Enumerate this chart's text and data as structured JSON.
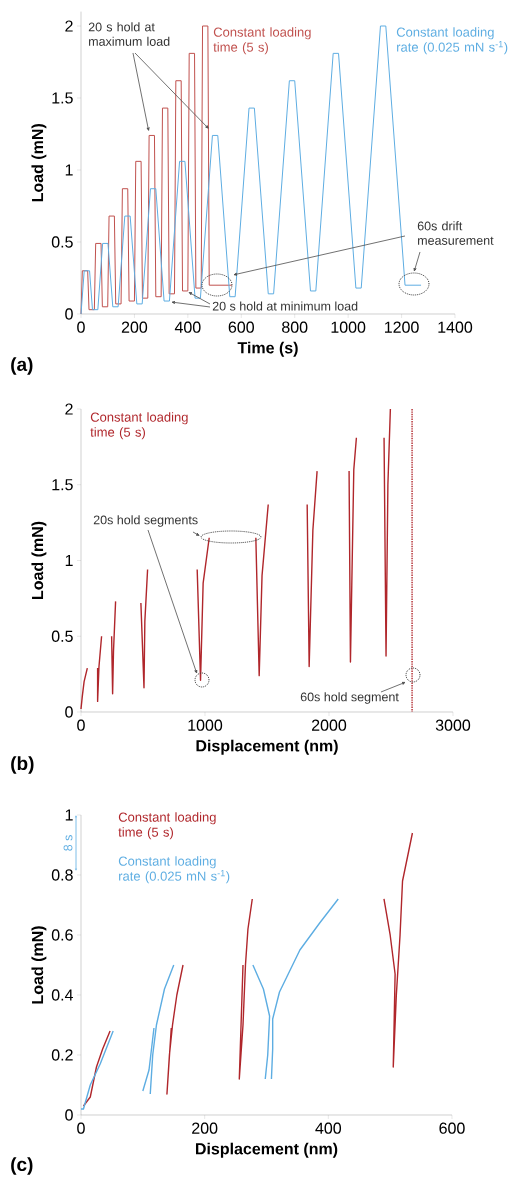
{
  "chart_data": [
    {
      "type": "line",
      "title": "(a)",
      "xlabel": "Time (s)",
      "ylabel": "Load (mN)",
      "xlim": [
        0,
        1400
      ],
      "ylim": [
        0,
        2.1
      ],
      "xticks": [
        0,
        200,
        400,
        600,
        800,
        1000,
        1200,
        1400
      ],
      "yticks": [
        0,
        0.5,
        1,
        1.5,
        2
      ],
      "series": [
        {
          "name": "Constant loading time (5 s)",
          "color": "#c0504d",
          "x": [
            0,
            5,
            25,
            30,
            50,
            55,
            75,
            80,
            100,
            105,
            125,
            130,
            150,
            155,
            175,
            180,
            200,
            205,
            225,
            230,
            250,
            255,
            275,
            280,
            300,
            305,
            325,
            330,
            350,
            355,
            375,
            380,
            400,
            405,
            425,
            430,
            450,
            455,
            475,
            480,
            565
          ],
          "values": [
            0,
            0.3,
            0.3,
            0.03,
            0.03,
            0.49,
            0.49,
            0.05,
            0.05,
            0.68,
            0.68,
            0.07,
            0.07,
            0.87,
            0.87,
            0.09,
            0.09,
            1.06,
            1.06,
            0.11,
            0.11,
            1.24,
            1.24,
            0.12,
            0.12,
            1.43,
            1.43,
            0.14,
            0.14,
            1.62,
            1.62,
            0.16,
            0.16,
            1.81,
            1.81,
            0.18,
            0.18,
            2.0,
            2.0,
            0.2,
            0.2
          ]
        },
        {
          "name": "Constant loading rate (0.025 mN s$^{-1}$)",
          "color": "#5dade2",
          "x": [
            0,
            12,
            32,
            43,
            63,
            81,
            101,
            119,
            139,
            164,
            184,
            209,
            229,
            260,
            280,
            311,
            331,
            369,
            389,
            427,
            447,
            492,
            512,
            557,
            577,
            629,
            649,
            701,
            721,
            780,
            800,
            859,
            879,
            944,
            964,
            1029,
            1049,
            1121,
            1141,
            1213,
            1273
          ],
          "values": [
            0,
            0.3,
            0.3,
            0.03,
            0.03,
            0.49,
            0.49,
            0.05,
            0.05,
            0.68,
            0.68,
            0.07,
            0.07,
            0.87,
            0.87,
            0.09,
            0.09,
            1.06,
            1.06,
            0.11,
            0.11,
            1.24,
            1.24,
            0.12,
            0.12,
            1.43,
            1.43,
            0.14,
            0.14,
            1.62,
            1.62,
            0.16,
            0.16,
            1.81,
            1.81,
            0.18,
            0.18,
            2.0,
            2.0,
            0.2,
            0.2
          ]
        }
      ],
      "annotations": [
        {
          "text": "20 s hold at maximum load",
          "x": 265,
          "y": 1.24
        },
        {
          "text": "20 s hold at minimum load",
          "x": 390,
          "y": 0.16
        },
        "60s drift measurement"
      ]
    },
    {
      "type": "line",
      "title": "(b)",
      "xlabel": "Displacement (nm)",
      "ylabel": "Load (mN)",
      "xlim": [
        0,
        3000
      ],
      "ylim": [
        0,
        2
      ],
      "xticks": [
        0,
        1000,
        2000,
        3000
      ],
      "yticks": [
        0,
        0.5,
        1,
        1.5,
        2
      ],
      "series": [
        {
          "name": "Constant loading time (5 s)",
          "color": "#b0262b",
          "x": [
            0,
            10,
            25,
            51,
            null,
            134,
            134,
            145,
            166,
            null,
            247,
            255,
            262,
            279,
            null,
            483,
            508,
            515,
            537,
            null,
            937,
            964,
            985,
            1034,
            null,
            1410,
            1437,
            1460,
            1510,
            null,
            1824,
            1840,
            1870,
            1904,
            null,
            2162,
            2173,
            2200,
            2221,
            null,
            2444,
            2460,
            2475,
            2495
          ],
          "values": [
            0.02,
            0.1,
            0.2,
            0.29,
            null,
            0.29,
            0.07,
            0.3,
            0.5,
            null,
            0.5,
            0.12,
            0.4,
            0.73,
            null,
            0.72,
            0.16,
            0.6,
            0.94,
            null,
            0.94,
            0.21,
            0.85,
            1.15,
            null,
            1.15,
            0.24,
            0.9,
            1.37,
            null,
            1.37,
            0.3,
            1.2,
            1.59,
            null,
            1.59,
            0.33,
            1.6,
            1.81,
            null,
            1.81,
            0.37,
            1.5,
            2.0
          ]
        },
        {
          "color": "#b0262b",
          "line_style": "dotted",
          "x": [
            2670,
            2670
          ],
          "values": [
            2.0,
            0
          ]
        }
      ],
      "annotations": [
        "20s hold segments",
        "60s hold segment"
      ]
    },
    {
      "type": "line",
      "title": "(c)",
      "xlabel": "Displacement (nm)",
      "ylabel": "Load (mN)",
      "xlim": [
        0,
        600
      ],
      "ylim": [
        0,
        1
      ],
      "xticks": [
        0,
        200,
        400,
        600
      ],
      "yticks": [
        0,
        0.2,
        0.4,
        0.6,
        0.8,
        1
      ],
      "series": [
        {
          "name": "Constant loading time (5 s)",
          "color": "#b0262b",
          "x": [
            4,
            15,
            25,
            35,
            47,
            null,
            146,
            139,
            143,
            148,
            155,
            165,
            null,
            262,
            256,
            262,
            266,
            270,
            277,
            null,
            490,
            500,
            508,
            505,
            510,
            516,
            520,
            530,
            536
          ],
          "values": [
            0.03,
            0.06,
            0.16,
            0.22,
            0.28,
            null,
            0.29,
            0.07,
            0.2,
            0.3,
            0.4,
            0.5,
            null,
            0.5,
            0.12,
            0.3,
            0.5,
            0.62,
            0.72,
            null,
            0.72,
            0.6,
            0.47,
            0.16,
            0.4,
            0.6,
            0.78,
            0.88,
            0.94
          ]
        },
        {
          "name": "Constant loading rate (0.025 mN s$^{-1}$)",
          "color": "#5dade2",
          "x": [
            0,
            4,
            15,
            31,
            52,
            null,
            118,
            110,
            100,
            null,
            112,
            116,
            122,
            135,
            150,
            null,
            278,
            295,
            305,
            302,
            298,
            null,
            308,
            310,
            310,
            321,
            354,
            386,
            416
          ],
          "values": [
            0.02,
            0.02,
            0.1,
            0.17,
            0.28,
            null,
            0.29,
            0.15,
            0.08,
            null,
            0.07,
            0.2,
            0.3,
            0.42,
            0.5,
            null,
            0.5,
            0.42,
            0.33,
            0.2,
            0.12,
            null,
            0.12,
            0.22,
            0.32,
            0.41,
            0.55,
            0.64,
            0.72
          ]
        }
      ],
      "legend": "top left",
      "annotations": [
        "8 s"
      ]
    }
  ]
}
